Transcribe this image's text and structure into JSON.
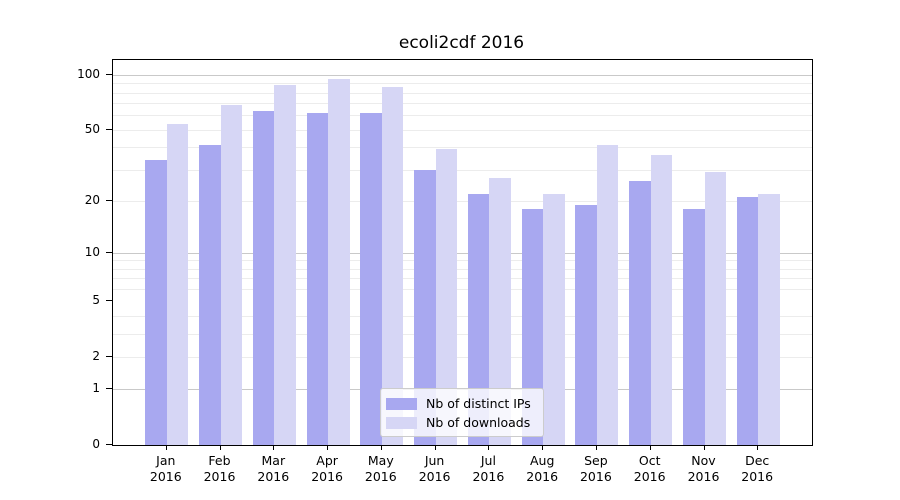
{
  "title": "ecoli2cdf 2016",
  "chart_data": {
    "type": "bar",
    "title": "ecoli2cdf 2016",
    "categories": [
      "Jan",
      "Feb",
      "Mar",
      "Apr",
      "May",
      "Jun",
      "Jul",
      "Aug",
      "Sep",
      "Oct",
      "Nov",
      "Dec"
    ],
    "year_label": "2016",
    "series": [
      {
        "name": "Nb of distinct IPs",
        "color": "#a8a8f0",
        "values": [
          34,
          41,
          63,
          62,
          62,
          30,
          22,
          18,
          19,
          26,
          18,
          21
        ]
      },
      {
        "name": "Nb of downloads",
        "color": "#d6d6f5",
        "values": [
          54,
          68,
          88,
          95,
          86,
          39,
          27,
          22,
          41,
          36,
          29,
          22
        ]
      }
    ],
    "yscale": "log1p",
    "ylim": [
      0,
      120.5
    ],
    "y_ticks": [
      0,
      1,
      2,
      5,
      10,
      20,
      50,
      100
    ],
    "major_gridlines": [
      1,
      10,
      100
    ],
    "minor_gridlines": [
      2,
      3,
      4,
      6,
      7,
      8,
      9,
      20,
      30,
      40,
      50,
      60,
      70,
      80,
      90
    ],
    "legend_position": "lower center",
    "grid": true,
    "xlabel": "",
    "ylabel": ""
  },
  "colors": {
    "background": "#ffffff",
    "spine": "#000000",
    "major_grid": "#c9c9c9",
    "minor_grid": "#ececec",
    "legend_border": "#cccccc"
  }
}
